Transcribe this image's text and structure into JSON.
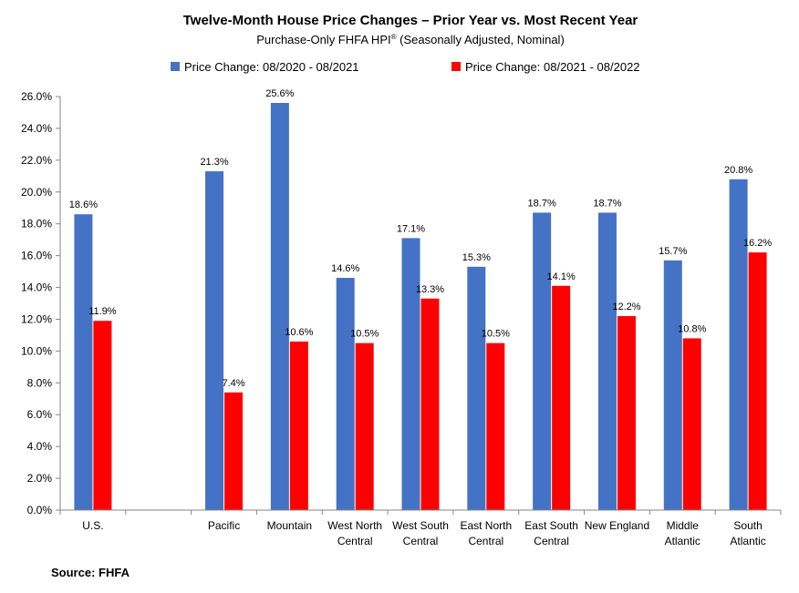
{
  "chart_data": {
    "type": "bar",
    "title": "Twelve-Month House Price Changes – Prior Year vs. Most Recent Year",
    "subtitle": "Purchase-Only FHFA HPI",
    "subtitle_mark": "®",
    "subtitle_suffix": " (Seasonally Adjusted, Nominal)",
    "categories": [
      [
        "U.S."
      ],
      [],
      [
        "Pacific"
      ],
      [
        "Mountain"
      ],
      [
        "West North",
        "Central"
      ],
      [
        "West South",
        "Central"
      ],
      [
        "East North",
        "Central"
      ],
      [
        "East South",
        "Central"
      ],
      [
        "New England"
      ],
      [
        "Middle",
        "Atlantic"
      ],
      [
        "South",
        "Atlantic"
      ]
    ],
    "series": [
      {
        "name": "Price Change:  08/2020 - 08/2021",
        "color": "#4472C4",
        "values": [
          18.6,
          null,
          21.3,
          25.6,
          14.6,
          17.1,
          15.3,
          18.7,
          18.7,
          15.7,
          20.8
        ],
        "labels": [
          "18.6%",
          "",
          "21.3%",
          "25.6%",
          "14.6%",
          "17.1%",
          "15.3%",
          "18.7%",
          "18.7%",
          "15.7%",
          "20.8%"
        ]
      },
      {
        "name": "Price Change:  08/2021 - 08/2022",
        "color": "#FF0000",
        "values": [
          11.9,
          null,
          7.4,
          10.6,
          10.5,
          13.3,
          10.5,
          14.1,
          12.2,
          10.8,
          16.2
        ],
        "labels": [
          "11.9%",
          "",
          "7.4%",
          "10.6%",
          "10.5%",
          "13.3%",
          "10.5%",
          "14.1%",
          "12.2%",
          "10.8%",
          "16.2%"
        ]
      }
    ],
    "ylim": [
      0,
      26
    ],
    "yticks": [
      "0.0%",
      "2.0%",
      "4.0%",
      "6.0%",
      "8.0%",
      "10.0%",
      "12.0%",
      "14.0%",
      "16.0%",
      "18.0%",
      "20.0%",
      "22.0%",
      "24.0%",
      "26.0%"
    ],
    "legend_position": "top",
    "grid": false
  },
  "source": "Source: FHFA"
}
